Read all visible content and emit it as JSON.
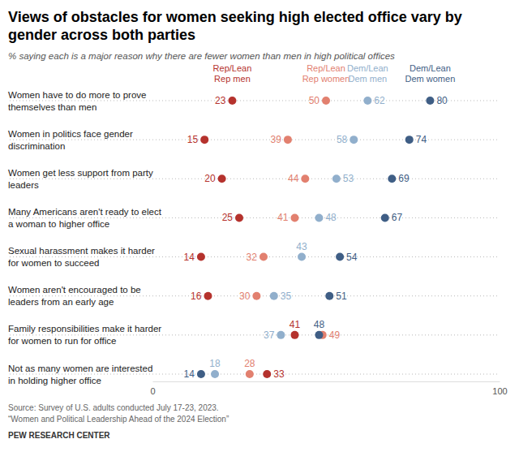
{
  "chart_data": {
    "type": "dot",
    "orientation": "horizontal",
    "title": "Views of obstacles for women seeking high elected office vary by gender across both parties",
    "subtitle": "% saying each is a major reason why there are fewer women than men in high political offices",
    "categories": [
      "Women have to do more to prove themselves than men",
      "Women in politics face gender discrimination",
      "Women get less support from party leaders",
      "Many Americans aren't ready to elect a woman to higher office",
      "Sexual harassment makes it harder for women to succeed",
      "Women aren't encouraged to be leaders from an early age",
      "Family responsibilities make it harder for women to run for office",
      "Not as many women are interested in holding higher office"
    ],
    "series": [
      {
        "name": "Rep/Lean Rep men",
        "color": "#b5322d",
        "values": [
          23,
          15,
          20,
          25,
          14,
          16,
          41,
          33
        ]
      },
      {
        "name": "Rep/Lean Rep women",
        "color": "#e2806f",
        "values": [
          50,
          39,
          44,
          41,
          32,
          30,
          49,
          28
        ]
      },
      {
        "name": "Dem/Lean Dem men",
        "color": "#91afcc",
        "values": [
          62,
          58,
          53,
          48,
          43,
          35,
          37,
          18
        ]
      },
      {
        "name": "Dem/Lean Dem women",
        "color": "#3f5e85",
        "values": [
          80,
          74,
          69,
          67,
          54,
          51,
          48,
          14
        ]
      }
    ],
    "xlim": [
      0,
      100
    ],
    "xticks": [
      0,
      100
    ],
    "data_labels": true,
    "footnotes": [
      "Source: Survey of U.S. adults conducted July 17-23, 2023.",
      "“Women and Political Leadership Ahead of the 2024 Election”"
    ],
    "credit": "PEW RESEARCH CENTER"
  }
}
